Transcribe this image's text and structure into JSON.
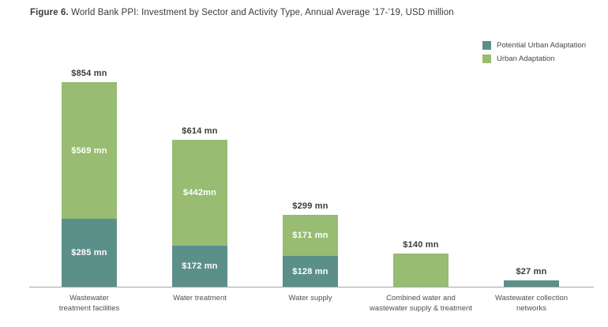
{
  "figure": {
    "title_prefix": "Figure 6.",
    "title_text": " World Bank PPI: Investment by Sector and Activity Type, Annual Average ’17-’19, USD million"
  },
  "colors": {
    "potential_urban_adaptation": "#5b908a",
    "urban_adaptation": "#97bc72",
    "axis_line": "#a6a6a6",
    "total_label_text": "#3b3b3b",
    "segment_label_text": "#ffffff"
  },
  "chart_data": {
    "type": "bar",
    "stacked": true,
    "unit": "USD million",
    "title": "World Bank PPI: Investment by Sector and Activity Type, Annual Average ’17-’19, USD million",
    "grid": false,
    "y_axis_visible": false,
    "legend_position": "top-right",
    "categories": [
      "Wastewater treatment facilities",
      "Water treatment",
      "Water supply",
      "Combined water and wastewater supply & treatment",
      "Wastewater collection networks"
    ],
    "series": [
      {
        "name": "Potential Urban Adaptation",
        "color": "#5b908a",
        "values": [
          285,
          172,
          128,
          0,
          27
        ]
      },
      {
        "name": "Urban Adaptation",
        "color": "#97bc72",
        "values": [
          569,
          442,
          171,
          140,
          0
        ]
      }
    ],
    "totals": [
      854,
      614,
      299,
      140,
      27
    ],
    "legend": [
      {
        "label": "Potential Urban Adaptation",
        "color": "#5b908a"
      },
      {
        "label": "Urban Adaptation",
        "color": "#97bc72"
      }
    ],
    "bars": [
      {
        "category": "Wastewater treatment facilities",
        "category_lines": [
          "Wastewater",
          "treatment facilities"
        ],
        "total_label": "$854 mn",
        "segments": [
          {
            "series": "Urban Adaptation",
            "value": 569,
            "label": "$569 mn"
          },
          {
            "series": "Potential Urban Adaptation",
            "value": 285,
            "label": "$285 mn"
          }
        ]
      },
      {
        "category": "Water treatment",
        "category_lines": [
          "Water treatment"
        ],
        "total_label": "$614 mn",
        "segments": [
          {
            "series": "Urban Adaptation",
            "value": 442,
            "label": "$442mn"
          },
          {
            "series": "Potential Urban Adaptation",
            "value": 172,
            "label": "$172 mn"
          }
        ]
      },
      {
        "category": "Water supply",
        "category_lines": [
          "Water supply"
        ],
        "total_label": "$299 mn",
        "segments": [
          {
            "series": "Urban Adaptation",
            "value": 171,
            "label": "$171 mn"
          },
          {
            "series": "Potential Urban Adaptation",
            "value": 128,
            "label": "$128 mn"
          }
        ]
      },
      {
        "category": "Combined water and wastewater supply & treatment",
        "category_lines": [
          "Combined water and",
          "wastewater supply & treatment"
        ],
        "total_label": "$140 mn",
        "segments": [
          {
            "series": "Urban Adaptation",
            "value": 140,
            "label": ""
          }
        ]
      },
      {
        "category": "Wastewater collection networks",
        "category_lines": [
          "Wastewater collection",
          "networks"
        ],
        "total_label": "$27 mn",
        "segments": [
          {
            "series": "Potential Urban Adaptation",
            "value": 27,
            "label": ""
          }
        ]
      }
    ]
  }
}
